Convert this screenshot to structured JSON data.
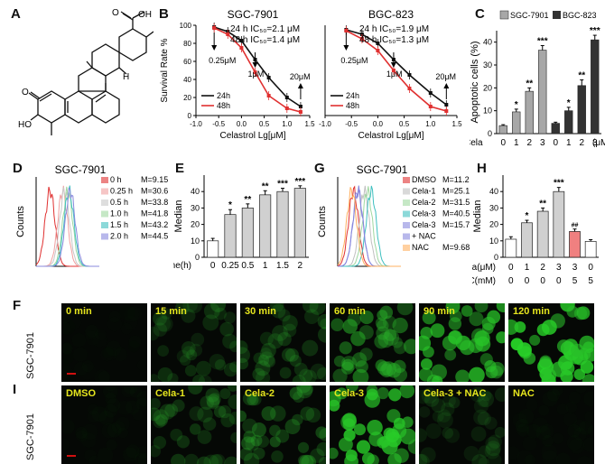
{
  "panels": {
    "A": "A",
    "B": "B",
    "C": "C",
    "D": "D",
    "E": "E",
    "F": "F",
    "G": "G",
    "H": "H",
    "I": "I"
  },
  "panelA": {
    "oh_top": "OH",
    "o_top": "O",
    "o_left": "O",
    "ho": "HO",
    "h": "H"
  },
  "panelB": {
    "left": {
      "title": "SGC-7901",
      "ic24": "24 h  IC₅₀=2.1 μM",
      "ic48": "48 h  IC₅₀=1.4 μM",
      "ann1": "0.25μM",
      "ann2": "1μM",
      "ann3": "20μM"
    },
    "right": {
      "title": "BGC-823",
      "ic24": "24 h  IC₅₀=1.9 μM",
      "ic48": "48 h  IC₅₀=1.3 μM",
      "ann1": "0.25μM",
      "ann2": "1μM",
      "ann3": "20μM"
    },
    "ylabel": "Survival Rate %",
    "xlabel": "Celastrol  Lg[μM]",
    "legend": [
      "24h",
      "48h"
    ]
  },
  "panelC": {
    "ylabel": "Apoptotic cells (%)",
    "legend": [
      "SGC-7901",
      "BGC-823"
    ],
    "xlabel_prefix": "Cela",
    "unit": "(μM)"
  },
  "panelD": {
    "title": "SGC-7901",
    "ylabel": "Counts",
    "labels": [
      "0      h",
      "0.25  h",
      "0.5    h",
      "1.0    h",
      "1.5    h",
      "2.0    h"
    ],
    "medians": [
      "M=9.15",
      "M=30.6",
      "M=33.8",
      "M=41.8",
      "M=43.2",
      "M=44.5"
    ]
  },
  "panelE": {
    "ylabel": "Median",
    "xlabel": "Time(h)"
  },
  "panelG": {
    "title": "SGC-7901",
    "ylabel": "Counts",
    "labels": [
      "DMSO",
      "Cela-1",
      "Cela-2",
      "Cela-3",
      "Cela-3",
      "+ NAC",
      "NAC"
    ],
    "medians": [
      "M=11.2",
      "M=25.1",
      "M=31.5",
      "M=40.5",
      "M=15.7",
      "",
      "M=9.68"
    ]
  },
  "panelH": {
    "ylabel": "Median",
    "row1_label": "Cela(μM)",
    "row2_label": "NAC(mM)",
    "row1": [
      "0",
      "1",
      "2",
      "3",
      "3",
      "0"
    ],
    "row2": [
      "0",
      "0",
      "0",
      "0",
      "5",
      "5"
    ]
  },
  "panelF": {
    "side": "SGC-7901",
    "labels": [
      "0 min",
      "15 min",
      "30 min",
      "60 min",
      "90 min",
      "120 min"
    ],
    "intensity": [
      0.02,
      0.25,
      0.3,
      0.55,
      0.8,
      0.95
    ]
  },
  "panelI": {
    "side": "SGC-7901",
    "labels": [
      "DMSO",
      "Cela-1",
      "Cela-2",
      "Cela-3",
      "Cela-3 + NAC",
      "NAC"
    ],
    "intensity": [
      0.03,
      0.3,
      0.4,
      0.85,
      0.2,
      0.03
    ]
  },
  "chart_data": [
    {
      "panel": "B-left",
      "type": "line",
      "title": "SGC-7901",
      "xlabel": "Celastrol  Lg[μM]",
      "ylabel": "Survival Rate %",
      "xlim": [
        -1.0,
        1.5
      ],
      "ylim": [
        0,
        100
      ],
      "xticks": [
        "-1.0",
        "-0.5",
        "0.0",
        "0.5",
        "1.0",
        "1.5"
      ],
      "yticks": [
        "0",
        "20",
        "40",
        "60",
        "80",
        "100"
      ],
      "series": [
        {
          "name": "24h",
          "color": "#111111",
          "x": [
            -0.6,
            -0.3,
            0.0,
            0.3,
            0.6,
            1.0,
            1.3
          ],
          "y": [
            98,
            93,
            83,
            62,
            42,
            20,
            10
          ]
        },
        {
          "name": "48h",
          "color": "#e03030",
          "x": [
            -0.6,
            -0.3,
            0.0,
            0.3,
            0.6,
            1.0,
            1.3
          ],
          "y": [
            97,
            90,
            75,
            48,
            22,
            8,
            4
          ]
        }
      ]
    },
    {
      "panel": "B-right",
      "type": "line",
      "title": "BGC-823",
      "xlabel": "Celastrol  Lg[μM]",
      "xlim": [
        -1.0,
        1.5
      ],
      "ylim": [
        0,
        100
      ],
      "xticks": [
        "-1.0",
        "-0.5",
        "0.0",
        "0.5",
        "1.0",
        "1.5"
      ],
      "series": [
        {
          "name": "24h",
          "color": "#111111",
          "x": [
            -0.6,
            -0.3,
            0.0,
            0.3,
            0.6,
            1.0,
            1.3
          ],
          "y": [
            95,
            90,
            80,
            62,
            45,
            25,
            12
          ]
        },
        {
          "name": "48h",
          "color": "#e03030",
          "x": [
            -0.6,
            -0.3,
            0.0,
            0.3,
            0.6,
            1.0,
            1.3
          ],
          "y": [
            94,
            85,
            72,
            50,
            30,
            10,
            5
          ]
        }
      ]
    },
    {
      "panel": "C",
      "type": "bar",
      "ylabel": "Apoptotic cells (%)",
      "ylim": [
        0,
        45
      ],
      "yticks": [
        "0",
        "10",
        "20",
        "30",
        "40"
      ],
      "categories": [
        "0",
        "1",
        "2",
        "3",
        "0",
        "1",
        "2",
        "3"
      ],
      "series": [
        {
          "name": "SGC-7901",
          "color": "#a7a7a7",
          "values": [
            3.5,
            9.5,
            18.5,
            36.5,
            null,
            null,
            null,
            null
          ],
          "errors": [
            0.4,
            1.2,
            1.5,
            2.0,
            0,
            0,
            0,
            0
          ],
          "sig": [
            "",
            "*",
            "**",
            "***",
            "",
            "",
            "",
            ""
          ]
        },
        {
          "name": "BGC-823",
          "color": "#333333",
          "values": [
            null,
            null,
            null,
            null,
            4.5,
            10,
            21,
            41
          ],
          "errors": [
            0,
            0,
            0,
            0,
            0.5,
            1.5,
            2.5,
            2.0
          ],
          "sig": [
            "",
            "",
            "",
            "",
            "",
            "*",
            "**",
            "***"
          ]
        }
      ]
    },
    {
      "panel": "E",
      "type": "bar",
      "ylabel": "Median",
      "xlabel": "Time(h)",
      "ylim": [
        0,
        50
      ],
      "yticks": [
        "0",
        "10",
        "20",
        "30",
        "40"
      ],
      "categories": [
        "0",
        "0.25",
        "0.5",
        "1",
        "1.5",
        "2"
      ],
      "values": [
        10,
        26,
        30,
        38,
        40,
        42
      ],
      "errors": [
        1.5,
        3,
        2.5,
        2.5,
        2,
        1.5
      ],
      "sig": [
        "",
        "*",
        "**",
        "**",
        "***",
        "***"
      ]
    },
    {
      "panel": "H",
      "type": "bar",
      "ylabel": "Median",
      "ylim": [
        0,
        50
      ],
      "yticks": [
        "0",
        "10",
        "20",
        "30",
        "40"
      ],
      "categories": [
        "1",
        "2",
        "3",
        "4",
        "5",
        "6"
      ],
      "values": [
        11,
        21,
        28,
        40,
        15.7,
        9.7
      ],
      "errors": [
        1.5,
        1.5,
        2,
        2.5,
        1.5,
        1
      ],
      "colors": [
        "#ffffff",
        "#d0d0d0",
        "#d0d0d0",
        "#d0d0d0",
        "#f08080",
        "#ffffff"
      ],
      "sig": [
        "",
        "*",
        "**",
        "***",
        "##",
        ""
      ]
    }
  ]
}
